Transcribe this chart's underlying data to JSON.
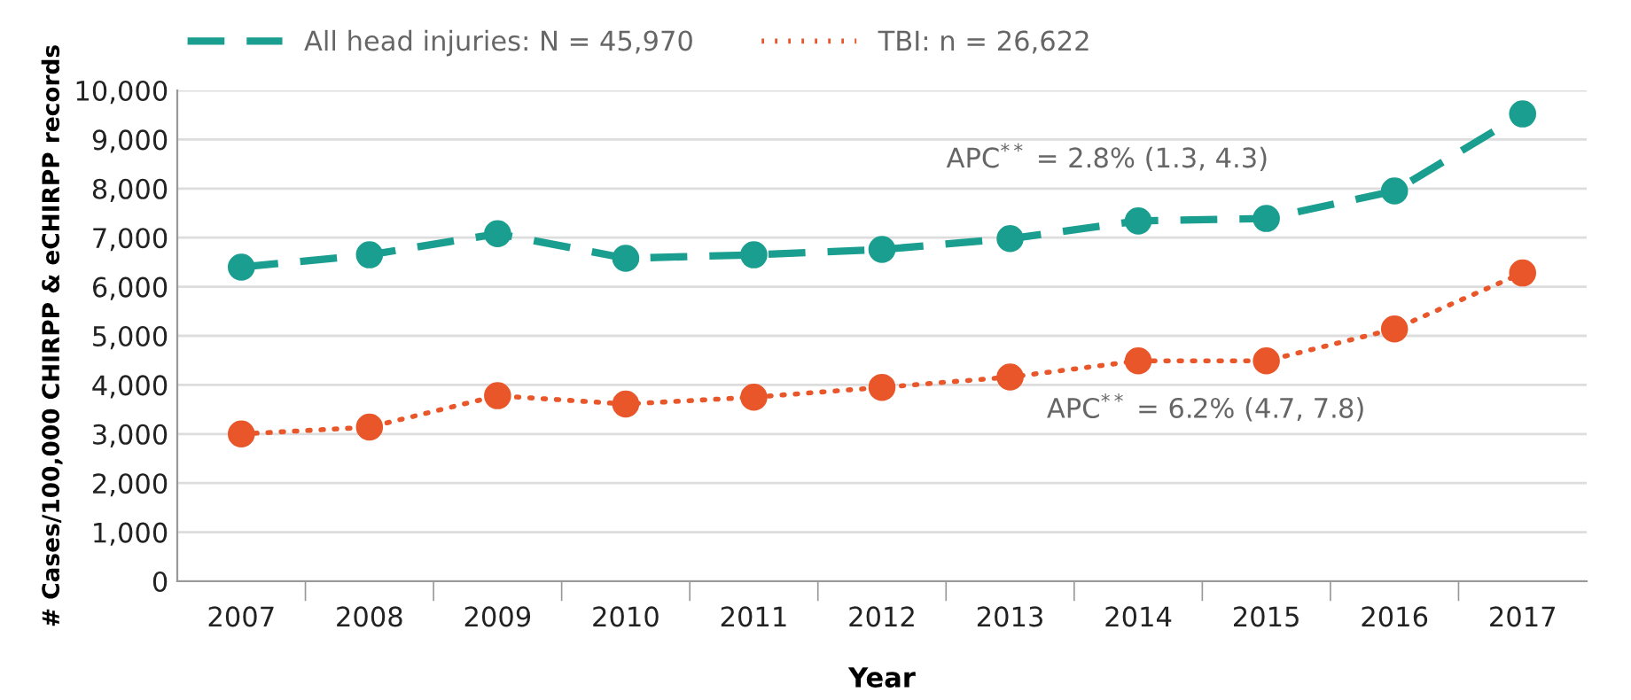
{
  "chart_data": {
    "type": "line",
    "xlabel": "Year",
    "ylabel": "# Cases/100,000 CHIRPP & eCHIRPP records",
    "categories": [
      "2007",
      "2008",
      "2009",
      "2010",
      "2011",
      "2012",
      "2013",
      "2014",
      "2015",
      "2016",
      "2017"
    ],
    "series": [
      {
        "name": "All head injuries: N = 45,970",
        "color": "#1a9e8f",
        "line_style": "dashed",
        "values": [
          6400,
          6650,
          7080,
          6580,
          6650,
          6760,
          6980,
          7340,
          7390,
          7950,
          9520
        ]
      },
      {
        "name": "TBI: n = 26,622",
        "color": "#e8562a",
        "line_style": "dotted",
        "values": [
          3000,
          3140,
          3780,
          3610,
          3750,
          3950,
          4160,
          4490,
          4490,
          5140,
          6280
        ]
      }
    ],
    "ylim": [
      0,
      10000
    ],
    "yticks": [
      {
        "value": 0,
        "label": "0"
      },
      {
        "value": 1000,
        "label": "1,000"
      },
      {
        "value": 2000,
        "label": "2,000"
      },
      {
        "value": 3000,
        "label": "3,000"
      },
      {
        "value": 4000,
        "label": "4,000"
      },
      {
        "value": 5000,
        "label": "5,000"
      },
      {
        "value": 6000,
        "label": "6,000"
      },
      {
        "value": 7000,
        "label": "7,000"
      },
      {
        "value": 8000,
        "label": "8,000"
      },
      {
        "value": 9000,
        "label": "9,000"
      },
      {
        "value": 10000,
        "label": "10,000"
      }
    ],
    "grid": "y",
    "legend": "top left",
    "marker": "circle",
    "annotations": [
      "APC$^{**}$ = 2.8% (1.3, 4.3)",
      "APC$^{**}$ = 6.2% (4.7, 7.8)"
    ]
  }
}
